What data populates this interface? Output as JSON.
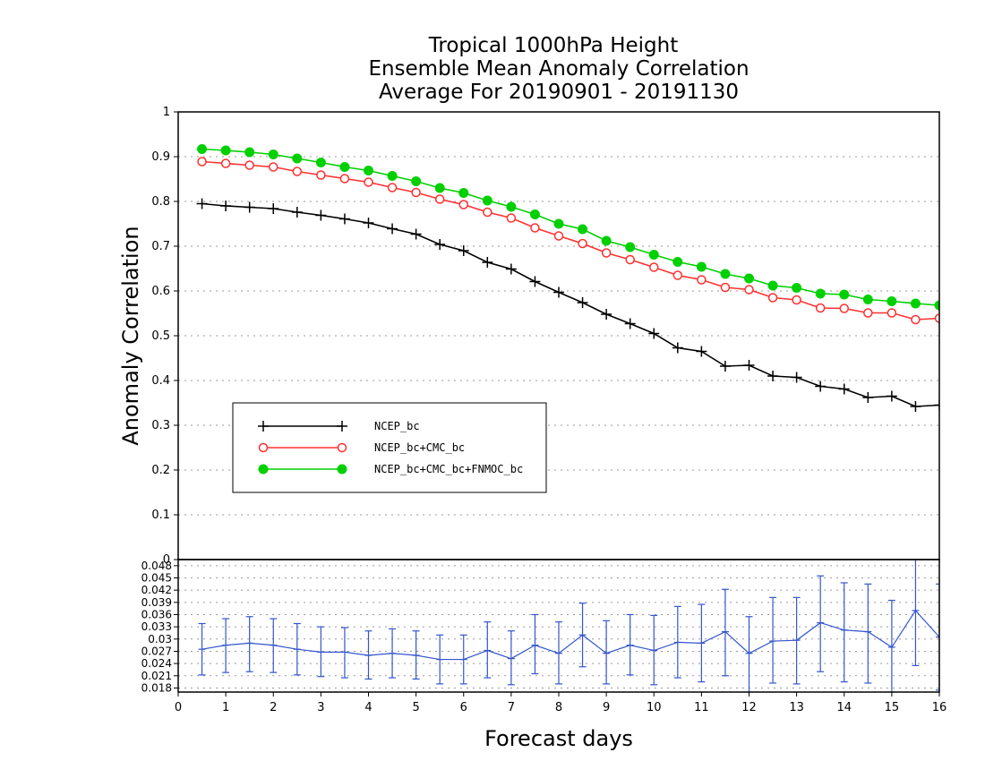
{
  "chart_data": [
    {
      "type": "line",
      "title_lines": [
        "Tropical 1000hPa Height",
        "Ensemble Mean Anomaly Correlation",
        "Average For 20190901 - 20191130"
      ],
      "xlabel": "Forecast days",
      "ylabel": "Anomaly Correlation",
      "xlim": [
        0,
        16
      ],
      "ylim": [
        0,
        1
      ],
      "xticks": [
        "0",
        "1",
        "2",
        "3",
        "4",
        "5",
        "6",
        "7",
        "8",
        "9",
        "10",
        "11",
        "12",
        "13",
        "14",
        "15",
        "16"
      ],
      "yticks": [
        "0",
        "0.1",
        "0.2",
        "0.3",
        "0.4",
        "0.5",
        "0.6",
        "0.7",
        "0.8",
        "0.9",
        "1"
      ],
      "grid": true,
      "legend": "lower-left",
      "x": [
        0.5,
        1,
        1.5,
        2,
        2.5,
        3,
        3.5,
        4,
        4.5,
        5,
        5.5,
        6,
        6.5,
        7,
        7.5,
        8,
        8.5,
        9,
        9.5,
        10,
        10.5,
        11,
        11.5,
        12,
        12.5,
        13,
        13.5,
        14,
        14.5,
        15,
        15.5,
        16
      ],
      "series": [
        {
          "name": "NCEP_bc",
          "color": "#000000",
          "marker": "plus",
          "values": [
            0.795,
            0.79,
            0.787,
            0.784,
            0.776,
            0.769,
            0.761,
            0.752,
            0.739,
            0.727,
            0.704,
            0.69,
            0.664,
            0.649,
            0.621,
            0.597,
            0.574,
            0.548,
            0.527,
            0.505,
            0.473,
            0.465,
            0.432,
            0.434,
            0.41,
            0.407,
            0.387,
            0.381,
            0.362,
            0.365,
            0.342,
            0.345
          ]
        },
        {
          "name": "NCEP_bc+CMC_bc",
          "color": "#ff3030",
          "marker": "open-circle",
          "values": [
            0.889,
            0.885,
            0.881,
            0.877,
            0.867,
            0.859,
            0.851,
            0.843,
            0.831,
            0.82,
            0.805,
            0.793,
            0.776,
            0.763,
            0.741,
            0.723,
            0.706,
            0.685,
            0.67,
            0.653,
            0.635,
            0.625,
            0.608,
            0.603,
            0.585,
            0.58,
            0.562,
            0.561,
            0.551,
            0.551,
            0.536,
            0.539
          ]
        },
        {
          "name": "NCEP_bc+CMC_bc+FNMOC_bc",
          "color": "#00d000",
          "marker": "filled-circle",
          "values": [
            0.917,
            0.914,
            0.91,
            0.905,
            0.896,
            0.887,
            0.877,
            0.869,
            0.857,
            0.845,
            0.83,
            0.819,
            0.802,
            0.788,
            0.771,
            0.75,
            0.738,
            0.712,
            0.698,
            0.681,
            0.665,
            0.654,
            0.638,
            0.628,
            0.612,
            0.607,
            0.594,
            0.592,
            0.581,
            0.577,
            0.572,
            0.568
          ]
        }
      ]
    },
    {
      "type": "line",
      "xlim": [
        0,
        16
      ],
      "ylim": [
        0.017,
        0.0495
      ],
      "yticks": [
        "0.018",
        "0.021",
        "0.024",
        "0.027",
        "0.03",
        "0.033",
        "0.036",
        "0.039",
        "0.042",
        "0.045",
        "0.048"
      ],
      "grid": true,
      "x": [
        0.5,
        1,
        1.5,
        2,
        2.5,
        3,
        3.5,
        4,
        4.5,
        5,
        5.5,
        6,
        6.5,
        7,
        7.5,
        8,
        8.5,
        9,
        9.5,
        10,
        10.5,
        11,
        11.5,
        12,
        12.5,
        13,
        13.5,
        14,
        14.5,
        15,
        15.5,
        16
      ],
      "series": [
        {
          "color": "#3355cc",
          "marker": "error-bar",
          "values": [
            0.0275,
            0.0285,
            0.029,
            0.0285,
            0.0275,
            0.0268,
            0.0268,
            0.026,
            0.0265,
            0.026,
            0.025,
            0.025,
            0.0272,
            0.0252,
            0.0285,
            0.0265,
            0.031,
            0.0265,
            0.0285,
            0.0272,
            0.0292,
            0.029,
            0.0318,
            0.0265,
            0.0295,
            0.0297,
            0.034,
            0.0322,
            0.0318,
            0.028,
            0.037,
            0.0305
          ],
          "lower": [
            0.0212,
            0.0218,
            0.022,
            0.0218,
            0.0212,
            0.0208,
            0.0205,
            0.0202,
            0.0205,
            0.0202,
            0.019,
            0.019,
            0.0205,
            0.0188,
            0.0215,
            0.019,
            0.0232,
            0.019,
            0.0212,
            0.0188,
            0.0205,
            0.0195,
            0.021,
            0.017,
            0.0192,
            0.019,
            0.022,
            0.0195,
            0.0192,
            0.017,
            0.0235,
            0.0175
          ],
          "upper": [
            0.0338,
            0.035,
            0.0355,
            0.035,
            0.0338,
            0.033,
            0.0328,
            0.032,
            0.0325,
            0.032,
            0.031,
            0.031,
            0.0342,
            0.032,
            0.036,
            0.0342,
            0.0388,
            0.0345,
            0.036,
            0.0358,
            0.038,
            0.0385,
            0.0422,
            0.0355,
            0.0402,
            0.0402,
            0.0455,
            0.0438,
            0.0435,
            0.0395,
            0.0505,
            0.0435
          ]
        }
      ]
    }
  ]
}
